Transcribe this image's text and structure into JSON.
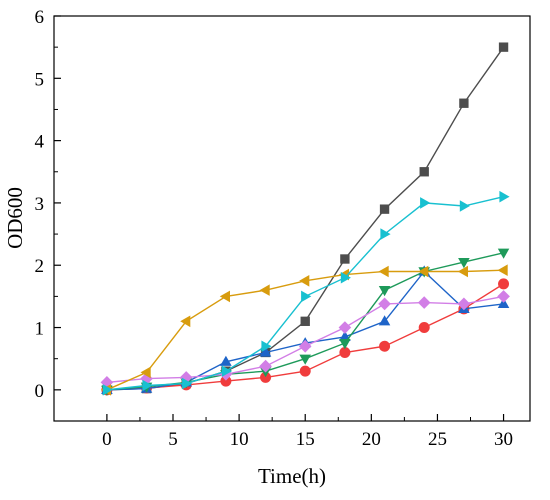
{
  "chart_data": {
    "type": "line",
    "title": "",
    "xlabel": "Time(h)",
    "ylabel": "OD600",
    "xlim": [
      -4,
      32
    ],
    "ylim": [
      -0.5,
      6
    ],
    "xticks": [
      0,
      5,
      10,
      15,
      20,
      25,
      30
    ],
    "yticks": [
      0,
      1,
      2,
      3,
      4,
      5,
      6
    ],
    "xtick_labels": [
      "0",
      "5",
      "10",
      "15",
      "20",
      "25",
      "30"
    ],
    "ytick_labels": [
      "0",
      "1",
      "2",
      "3",
      "4",
      "5",
      "6"
    ],
    "grid": false,
    "legend": "none",
    "x": [
      0,
      3,
      6,
      9,
      12,
      15,
      18,
      21,
      24,
      27,
      30
    ],
    "series": [
      {
        "marker": "square",
        "color": "#4d4d4d",
        "values": [
          0,
          0.02,
          0.1,
          0.3,
          0.6,
          1.1,
          2.1,
          2.9,
          3.5,
          4.6,
          5.5
        ]
      },
      {
        "marker": "circle",
        "color": "#f03c3c",
        "values": [
          0,
          0.03,
          0.08,
          0.14,
          0.2,
          0.3,
          0.6,
          0.7,
          1.0,
          1.3,
          1.7
        ]
      },
      {
        "marker": "triangle-up",
        "color": "#1e64c8",
        "values": [
          0,
          0.02,
          0.12,
          0.45,
          0.6,
          0.75,
          0.85,
          1.1,
          1.9,
          1.3,
          1.38
        ]
      },
      {
        "marker": "triangle-down",
        "color": "#1e9a5a",
        "values": [
          0,
          0.05,
          0.12,
          0.25,
          0.3,
          0.5,
          0.75,
          1.6,
          1.9,
          2.05,
          2.2
        ]
      },
      {
        "marker": "diamond",
        "color": "#d27ee6",
        "values": [
          0.12,
          0.18,
          0.2,
          0.25,
          0.38,
          0.7,
          1.0,
          1.38,
          1.4,
          1.38,
          1.5
        ]
      },
      {
        "marker": "triangle-left",
        "color": "#d89c0e",
        "values": [
          0,
          0.28,
          1.1,
          1.5,
          1.6,
          1.75,
          1.85,
          1.9,
          1.9,
          1.9,
          1.92
        ]
      },
      {
        "marker": "triangle-right",
        "color": "#18c0d0",
        "values": [
          0,
          0.07,
          0.1,
          0.3,
          0.7,
          1.5,
          1.8,
          2.5,
          3.0,
          2.95,
          3.1
        ]
      }
    ]
  }
}
